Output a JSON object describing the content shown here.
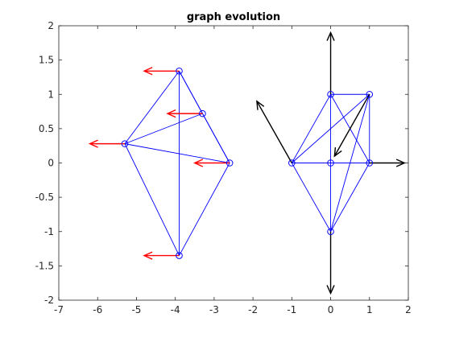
{
  "chart_data": {
    "type": "scatter",
    "title": "graph evolution",
    "xlabel": "",
    "ylabel": "",
    "xlim": [
      -7,
      2
    ],
    "ylim": [
      -2,
      2
    ],
    "xticks": [
      -7,
      -6,
      -5,
      -4,
      -3,
      -2,
      -1,
      0,
      1,
      2
    ],
    "yticks": [
      -2,
      -1.5,
      -1,
      -0.5,
      0,
      0.5,
      1,
      1.5,
      2
    ],
    "xtick_labels": [
      "-7",
      "-6",
      "-5",
      "-4",
      "-3",
      "-2",
      "-1",
      "0",
      "1",
      "2"
    ],
    "ytick_labels": [
      "-2",
      "-1.5",
      "-1",
      "-0.5",
      "0",
      "0.5",
      "1",
      "1.5",
      "2"
    ],
    "grid": false,
    "graphs": [
      {
        "nodes": [
          {
            "x": -3.9,
            "y": 1.34
          },
          {
            "x": -3.3,
            "y": 0.72
          },
          {
            "x": -5.3,
            "y": 0.28
          },
          {
            "x": -2.6,
            "y": 0.0
          },
          {
            "x": -3.9,
            "y": -1.35
          }
        ],
        "edges": [
          [
            0,
            1
          ],
          [
            0,
            2
          ],
          [
            0,
            3
          ],
          [
            0,
            4
          ],
          [
            1,
            2
          ],
          [
            1,
            3
          ],
          [
            2,
            3
          ],
          [
            2,
            4
          ],
          [
            3,
            4
          ]
        ],
        "vectors": [
          {
            "x": -3.9,
            "y": 1.34,
            "dx": -0.9,
            "dy": 0.0
          },
          {
            "x": -3.3,
            "y": 0.72,
            "dx": -0.9,
            "dy": 0.0
          },
          {
            "x": -5.3,
            "y": 0.28,
            "dx": -0.9,
            "dy": 0.0
          },
          {
            "x": -2.6,
            "y": 0.0,
            "dx": -0.9,
            "dy": 0.0
          },
          {
            "x": -3.9,
            "y": -1.35,
            "dx": -0.9,
            "dy": 0.0
          }
        ]
      },
      {
        "nodes": [
          {
            "x": 0.0,
            "y": 1.0
          },
          {
            "x": 1.0,
            "y": 1.0
          },
          {
            "x": -1.0,
            "y": 0.0
          },
          {
            "x": 0.0,
            "y": 0.0
          },
          {
            "x": 1.0,
            "y": 0.0
          },
          {
            "x": 0.0,
            "y": -1.0
          }
        ],
        "edges": [
          [
            0,
            1
          ],
          [
            0,
            2
          ],
          [
            0,
            3
          ],
          [
            0,
            4
          ],
          [
            1,
            2
          ],
          [
            1,
            4
          ],
          [
            1,
            5
          ],
          [
            2,
            4
          ],
          [
            2,
            5
          ],
          [
            3,
            5
          ],
          [
            4,
            5
          ]
        ],
        "vectors": [
          {
            "x": 0.0,
            "y": 1.0,
            "dx": 0.0,
            "dy": 0.9
          },
          {
            "x": 1.0,
            "y": 1.0,
            "dx": -0.9,
            "dy": -0.9
          },
          {
            "x": -1.0,
            "y": 0.0,
            "dx": -0.9,
            "dy": 0.9
          },
          {
            "x": 1.0,
            "y": 0.0,
            "dx": 0.9,
            "dy": 0.0
          },
          {
            "x": 0.0,
            "y": -1.0,
            "dx": 0.0,
            "dy": -0.9
          }
        ]
      }
    ],
    "colors": {
      "edges": "#0000ff",
      "nodes": "#0000ff",
      "vectors": [
        "#ff0000",
        "#000000"
      ],
      "axes": "#262626",
      "background": "#ffffff"
    }
  }
}
